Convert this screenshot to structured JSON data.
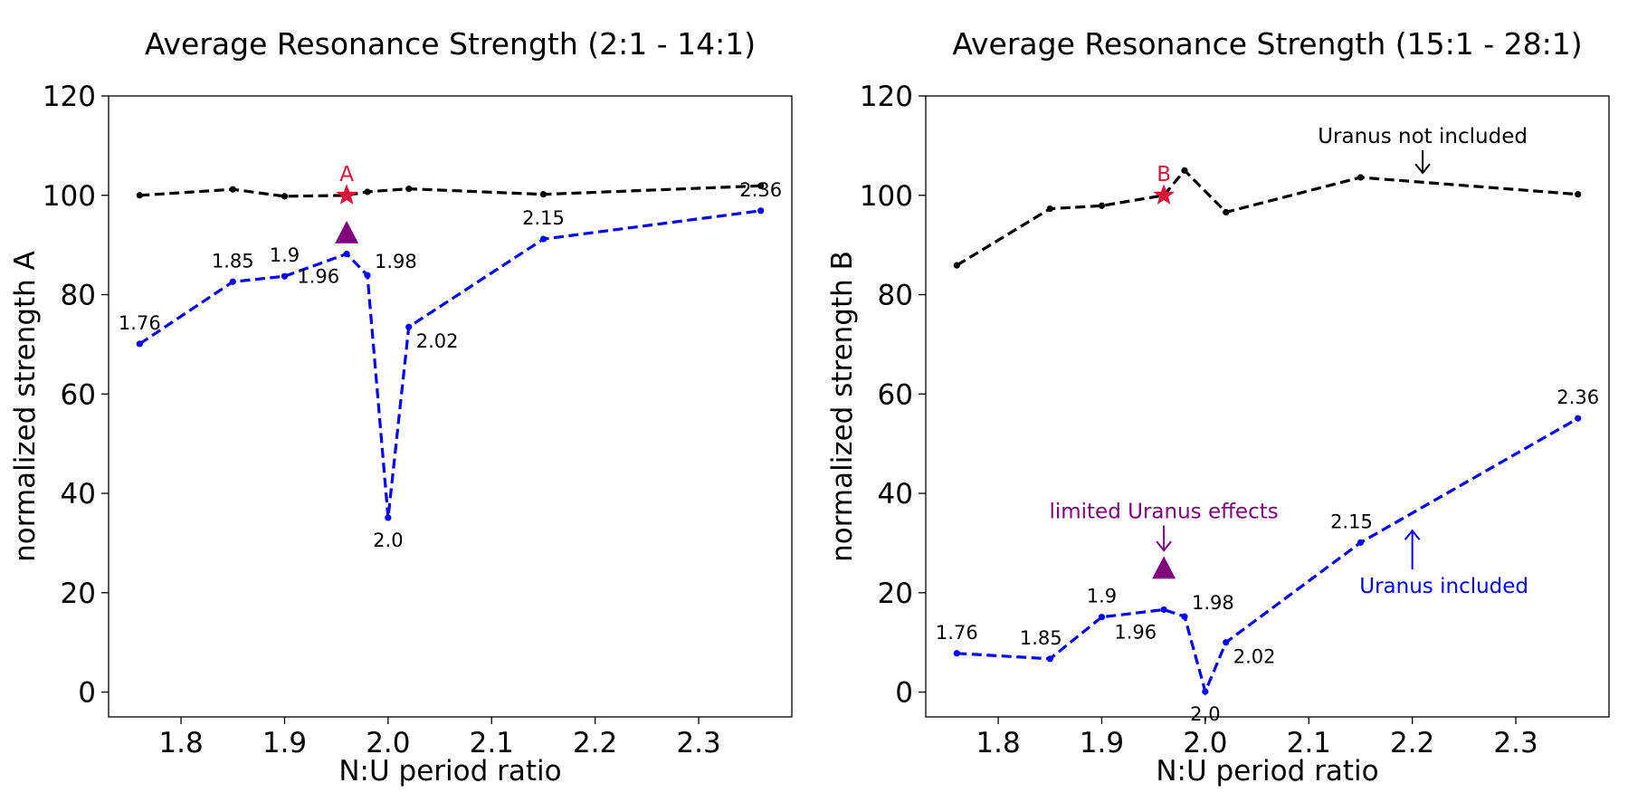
{
  "colors": {
    "uranus_not_included": "#000000",
    "uranus_included": "#0000ff",
    "marker_star": "#dc143c",
    "marker_triangle": "#800080",
    "axis": "#000000"
  },
  "chart_data": [
    {
      "type": "line",
      "title": "Average Resonance Strength (2:1 - 14:1)",
      "xlabel": "N:U period ratio",
      "ylabel": "normalized strength A",
      "xlim": [
        1.73,
        2.39
      ],
      "ylim": [
        -5,
        120
      ],
      "xticks": [
        "1.8",
        "1.9",
        "2.0",
        "2.1",
        "2.2",
        "2.3"
      ],
      "yticks": [
        "0",
        "20",
        "40",
        "60",
        "80",
        "100",
        "120"
      ],
      "grid": false,
      "series": [
        {
          "name": "Uranus not included",
          "color_key": "uranus_not_included",
          "x": [
            1.76,
            1.85,
            1.9,
            1.96,
            1.98,
            2.02,
            2.15,
            2.36
          ],
          "y": [
            100.0,
            101.2,
            99.8,
            100.0,
            100.7,
            101.3,
            100.2,
            101.9
          ]
        },
        {
          "name": "Uranus included",
          "color_key": "uranus_included",
          "x": [
            1.76,
            1.85,
            1.9,
            1.96,
            1.98,
            2.0,
            2.02,
            2.15,
            2.36
          ],
          "y": [
            70.1,
            82.6,
            83.7,
            88.2,
            83.9,
            35.1,
            73.5,
            91.2,
            96.9
          ]
        }
      ],
      "point_labels": [
        {
          "text": "1.76",
          "x": 1.76,
          "y": 70.1,
          "pos": "above"
        },
        {
          "text": "1.85",
          "x": 1.85,
          "y": 82.6,
          "pos": "above"
        },
        {
          "text": "1.9",
          "x": 1.9,
          "y": 83.7,
          "pos": "above"
        },
        {
          "text": "1.96",
          "x": 1.96,
          "y": 88.2,
          "pos": "below-left"
        },
        {
          "text": "1.98",
          "x": 1.98,
          "y": 83.9,
          "pos": "above-right"
        },
        {
          "text": "2.0",
          "x": 2.0,
          "y": 35.1,
          "pos": "below"
        },
        {
          "text": "2.02",
          "x": 2.02,
          "y": 73.5,
          "pos": "below-right"
        },
        {
          "text": "2.15",
          "x": 2.15,
          "y": 91.2,
          "pos": "above"
        },
        {
          "text": "2.36",
          "x": 2.36,
          "y": 96.9,
          "pos": "above"
        }
      ],
      "star": {
        "label": "A",
        "x": 1.96,
        "y": 100
      },
      "triangle": {
        "x": 1.96,
        "y": 92.5
      },
      "annotations": []
    },
    {
      "type": "line",
      "title": "Average Resonance Strength (15:1 - 28:1)",
      "xlabel": "N:U period ratio",
      "ylabel": "normalized strength B",
      "xlim": [
        1.73,
        2.39
      ],
      "ylim": [
        -5,
        120
      ],
      "xticks": [
        "1.8",
        "1.9",
        "2.0",
        "2.1",
        "2.2",
        "2.3"
      ],
      "yticks": [
        "0",
        "20",
        "40",
        "60",
        "80",
        "100",
        "120"
      ],
      "grid": false,
      "series": [
        {
          "name": "Uranus not included",
          "color_key": "uranus_not_included",
          "x": [
            1.76,
            1.85,
            1.9,
            1.96,
            1.98,
            2.02,
            2.15,
            2.36
          ],
          "y": [
            85.9,
            97.3,
            97.9,
            100.0,
            105.0,
            96.6,
            103.6,
            100.2
          ]
        },
        {
          "name": "Uranus included",
          "color_key": "uranus_included",
          "x": [
            1.76,
            1.85,
            1.9,
            1.96,
            1.98,
            2.0,
            2.02,
            2.15,
            2.36
          ],
          "y": [
            7.8,
            6.7,
            15.1,
            16.6,
            15.2,
            0.1,
            10.0,
            30.1,
            55.1
          ]
        }
      ],
      "point_labels": [
        {
          "text": "1.76",
          "x": 1.76,
          "y": 7.8,
          "pos": "above"
        },
        {
          "text": "1.85",
          "x": 1.85,
          "y": 6.7,
          "pos": "above-left"
        },
        {
          "text": "1.9",
          "x": 1.9,
          "y": 15.1,
          "pos": "above"
        },
        {
          "text": "1.96",
          "x": 1.96,
          "y": 16.6,
          "pos": "below-left"
        },
        {
          "text": "1.98",
          "x": 1.98,
          "y": 15.2,
          "pos": "above-right"
        },
        {
          "text": "2.0",
          "x": 2.0,
          "y": 0.1,
          "pos": "below"
        },
        {
          "text": "2.02",
          "x": 2.02,
          "y": 10.0,
          "pos": "below-right"
        },
        {
          "text": "2.15",
          "x": 2.15,
          "y": 30.1,
          "pos": "above-left"
        },
        {
          "text": "2.36",
          "x": 2.36,
          "y": 55.1,
          "pos": "above"
        }
      ],
      "star": {
        "label": "B",
        "x": 1.96,
        "y": 100
      },
      "triangle": {
        "x": 1.96,
        "y": 25
      },
      "annotations": [
        {
          "text": "Uranus not included",
          "color_key": "uranus_not_included",
          "x": 2.21,
          "y": 110.5,
          "arrow_to_y": 104.5
        },
        {
          "text": "limited Uranus effects",
          "color_key": "marker_triangle",
          "x": 1.96,
          "y": 35,
          "arrow_to_y": 28.5
        },
        {
          "text": "Uranus included",
          "color_key": "uranus_included",
          "x": 2.2,
          "y": 21.4,
          "arrow_to_y": 32.5,
          "arrow_above": true
        }
      ]
    }
  ]
}
